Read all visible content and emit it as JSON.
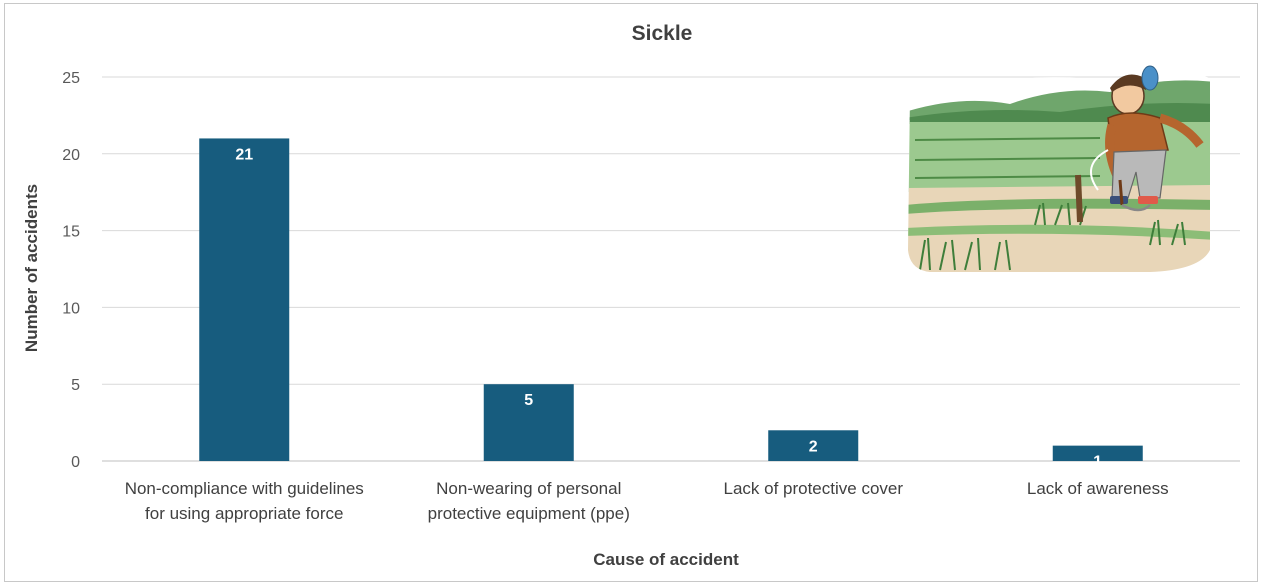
{
  "chart_data": {
    "type": "bar",
    "title": "Sickle",
    "xlabel": "Cause of accident",
    "ylabel": "Number of accidents",
    "categories": [
      [
        "Non-compliance with guidelines",
        "for using appropriate force"
      ],
      [
        "Non-wearing of personal",
        "protective equipment (ppe)"
      ],
      [
        "Lack of protective cover"
      ],
      [
        "Lack of awareness"
      ]
    ],
    "values": [
      21,
      5,
      2,
      1
    ],
    "ylim": [
      0,
      25
    ],
    "yticks": [
      0,
      5,
      10,
      15,
      20,
      25
    ],
    "grid": true,
    "legend": "none",
    "data_labels": true,
    "bar_color": "#175c7e",
    "grid_color": "#d9d9d9"
  },
  "illustration": {
    "description_icon": "farmer-cutting-rice-with-sickle-illustration"
  }
}
